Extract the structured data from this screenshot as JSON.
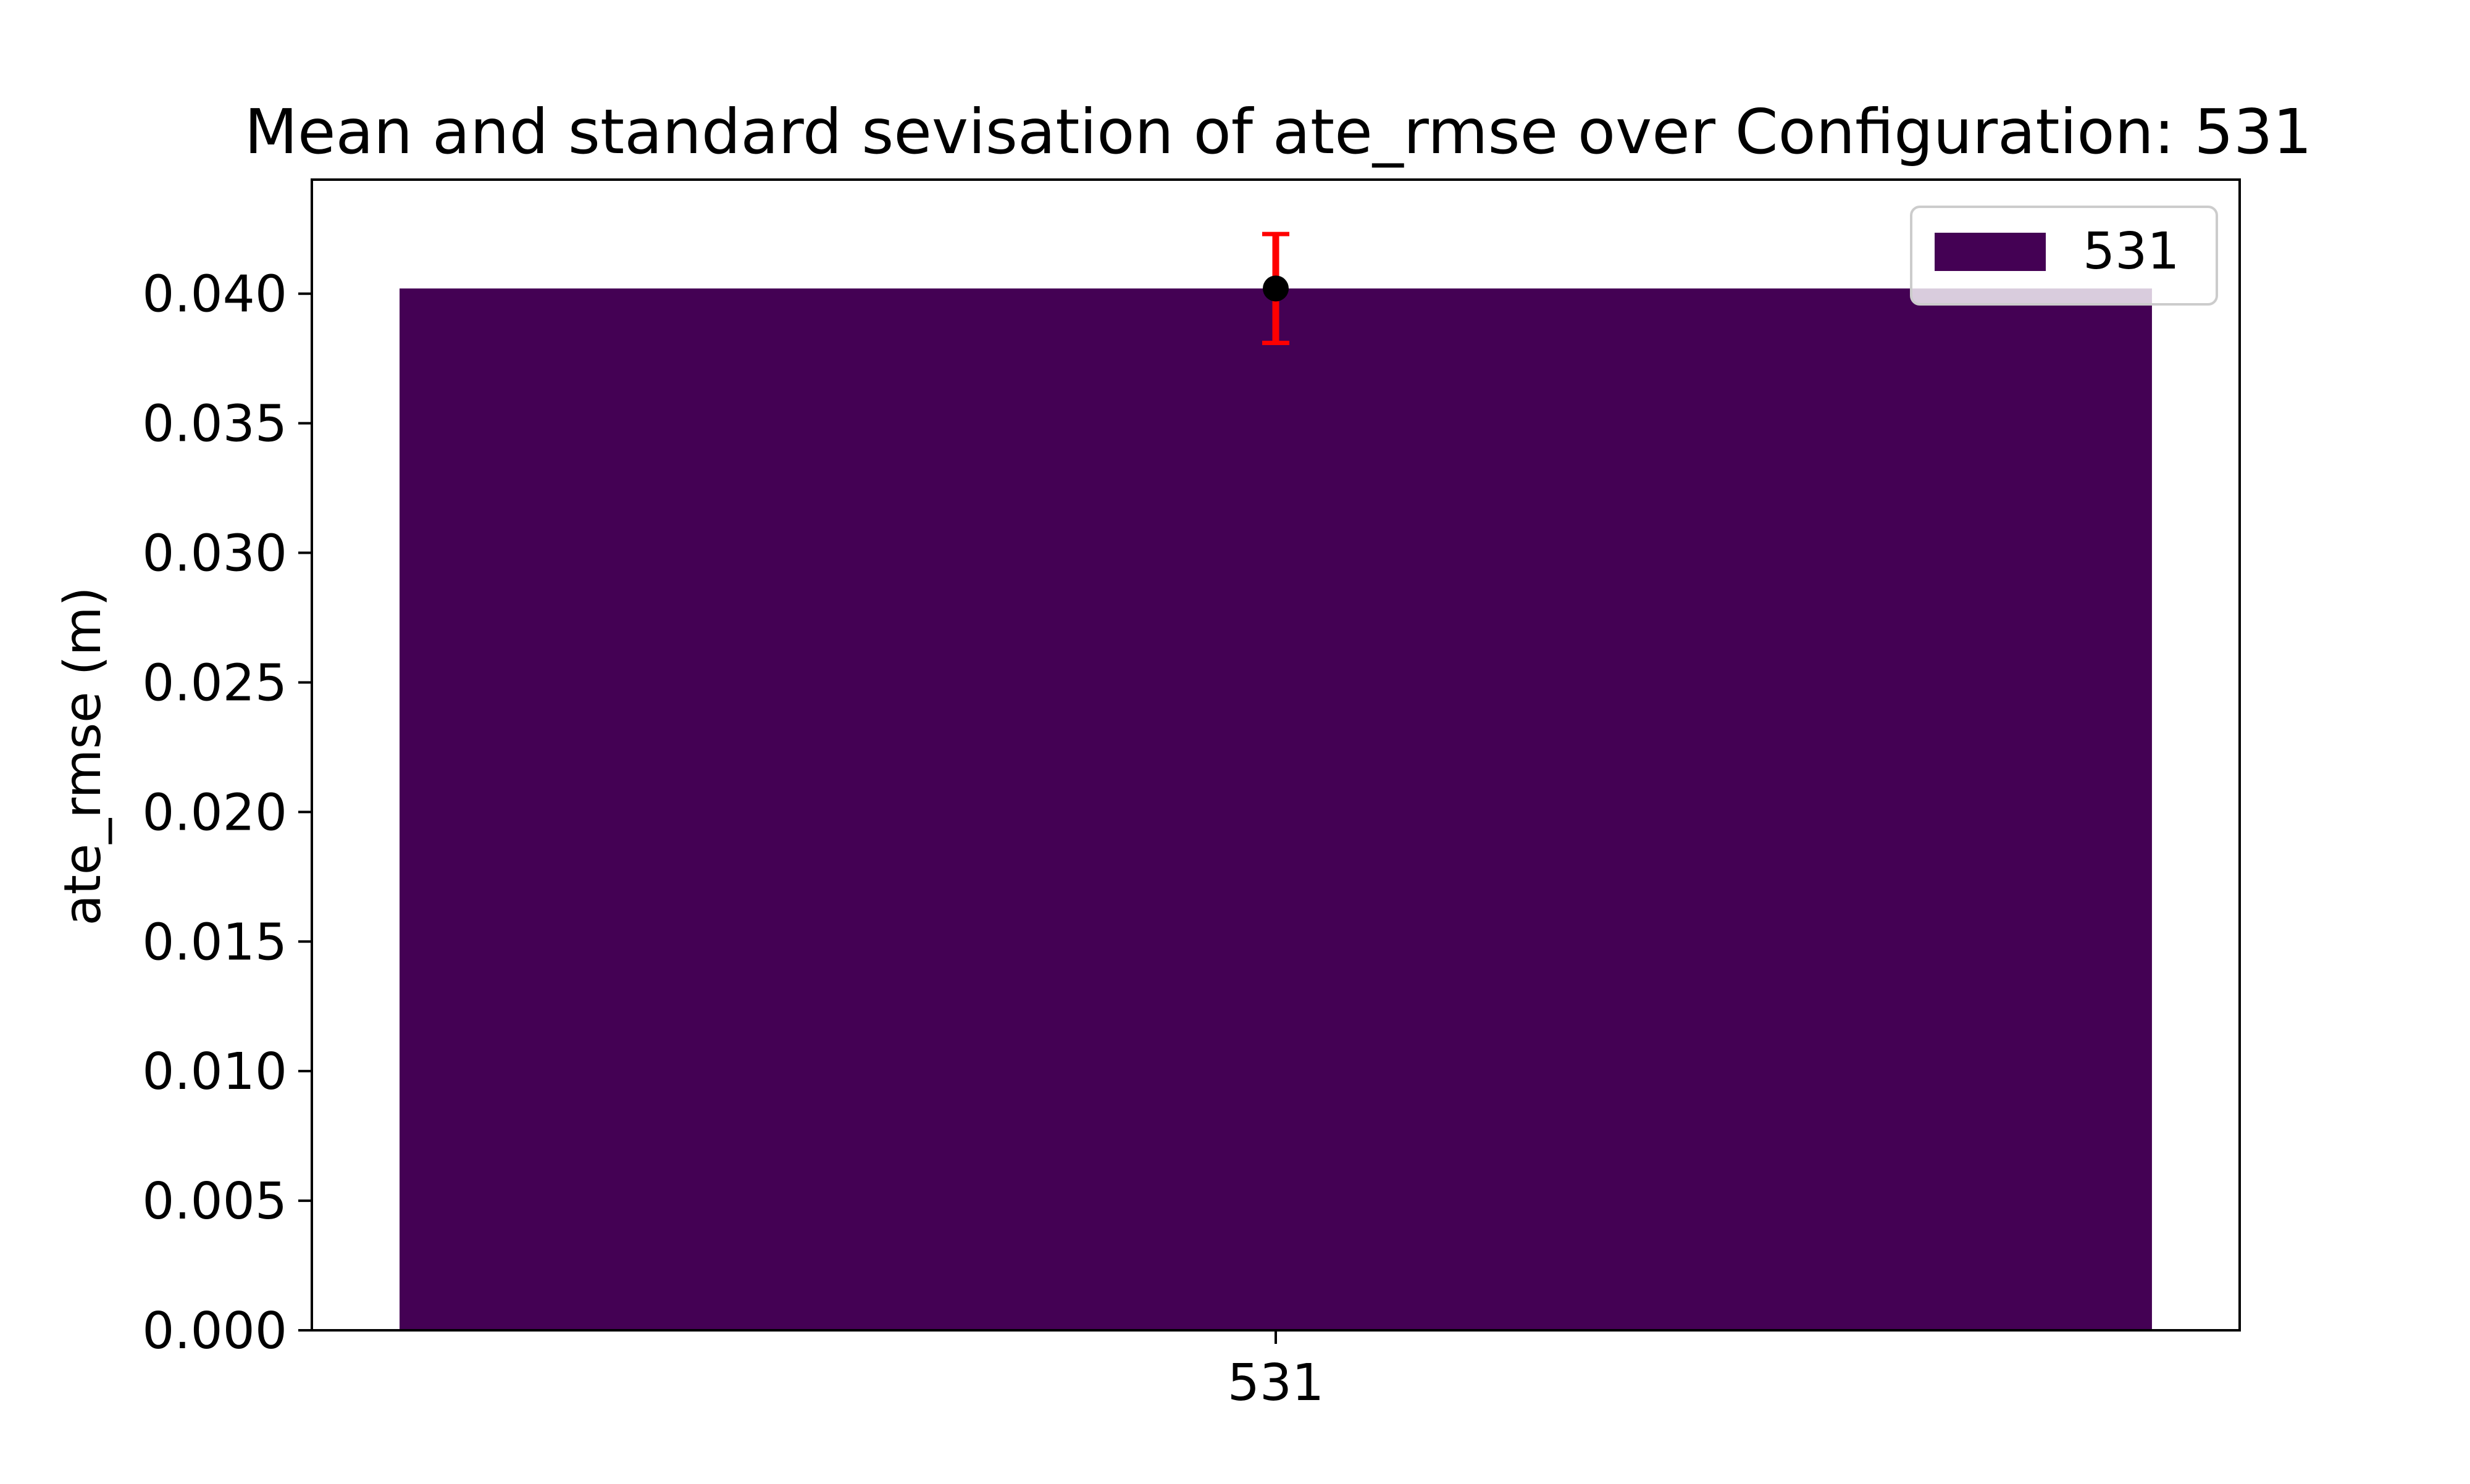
{
  "chart_data": {
    "type": "bar",
    "title": "Mean and standard sevisation of ate_rmse over Configuration: 531",
    "xlabel": "",
    "ylabel": "ate_rmse (m)",
    "categories": [
      "531"
    ],
    "series": [
      {
        "name": "531",
        "values": [
          0.0402
        ],
        "error": [
          0.0021
        ],
        "color": "#440154"
      }
    ],
    "error_bar_color": "#ff0000",
    "marker_color": "#000000",
    "ylim": [
      0,
      0.0444
    ],
    "yticks": [
      0.0,
      0.005,
      0.01,
      0.015,
      0.02,
      0.025,
      0.03,
      0.035,
      0.04
    ],
    "ytick_labels": [
      "0.000",
      "0.005",
      "0.010",
      "0.015",
      "0.020",
      "0.025",
      "0.030",
      "0.035",
      "0.040"
    ],
    "grid": false,
    "legend_position": "top-right"
  }
}
